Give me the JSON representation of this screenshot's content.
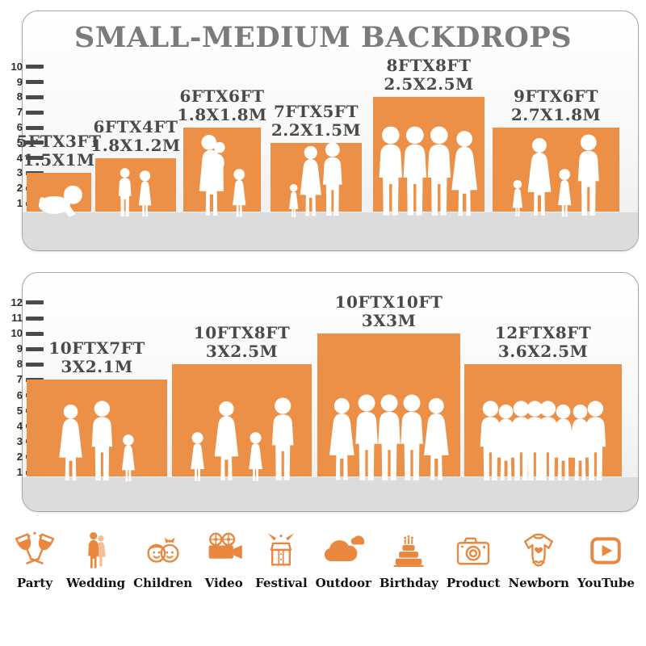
{
  "title": "SMALL-MEDIUM BACKDROPS",
  "colors": {
    "bar_orange": "#ED9047",
    "icon_orange": "#E9873E",
    "title_gray": "#7B7B7B",
    "label_gray": "#4A4A4A",
    "floor_gray": "#DCDCDC",
    "silhouette_white": "#FFFFFF"
  },
  "chart_data": [
    {
      "type": "bar",
      "panel": "small-medium-sizes-top",
      "ylim": [
        1,
        10
      ],
      "grid": false,
      "note": "bar height = backdrop height in ft, bar width = backdrop width in ft",
      "bars": [
        {
          "size_ft": "5FTX3FT",
          "size_m": "1.5X1M",
          "width_ft": 5,
          "height_ft": 3,
          "figures": [
            "baby"
          ]
        },
        {
          "size_ft": "6FTX4FT",
          "size_m": "1.8X1.2M",
          "width_ft": 6,
          "height_ft": 4,
          "figures": [
            "boy",
            "girl"
          ]
        },
        {
          "size_ft": "6FTX6FT",
          "size_m": "1.8X1.8M",
          "width_ft": 6,
          "height_ft": 6,
          "figures": [
            "woman-holding-baby",
            "girl"
          ]
        },
        {
          "size_ft": "7FTX5FT",
          "size_m": "2.2X1.5M",
          "width_ft": 7,
          "height_ft": 5,
          "figures": [
            "toddler",
            "woman",
            "man"
          ]
        },
        {
          "size_ft": "8FTX8FT",
          "size_m": "2.5X2.5M",
          "width_ft": 8,
          "height_ft": 8,
          "figures": [
            "man",
            "man",
            "man",
            "woman"
          ]
        },
        {
          "size_ft": "9FTX6FT",
          "size_m": "2.7X1.8M",
          "width_ft": 9,
          "height_ft": 6,
          "figures": [
            "toddler",
            "woman",
            "girl",
            "man"
          ]
        }
      ]
    },
    {
      "type": "bar",
      "panel": "small-medium-sizes-bottom",
      "ylim": [
        1,
        12
      ],
      "grid": false,
      "bars": [
        {
          "size_ft": "10FTX7FT",
          "size_m": "3X2.1M",
          "width_ft": 10,
          "height_ft": 7,
          "figures": [
            "woman",
            "man",
            "girl"
          ]
        },
        {
          "size_ft": "10FTX8FT",
          "size_m": "3X2.5M",
          "width_ft": 10,
          "height_ft": 8,
          "figures": [
            "girl",
            "woman",
            "girl",
            "man"
          ]
        },
        {
          "size_ft": "10FTX10FT",
          "size_m": "3X3M",
          "width_ft": 10,
          "height_ft": 10,
          "figures": [
            "woman",
            "man",
            "man",
            "man",
            "woman"
          ]
        },
        {
          "size_ft": "12FTX8FT",
          "size_m": "3.6X2.5M",
          "width_ft": 12,
          "height_ft": 8,
          "figures": [
            "man",
            "woman",
            "man",
            "man",
            "man",
            "woman",
            "woman",
            "man"
          ]
        }
      ]
    }
  ],
  "categories": [
    {
      "icon": "party-icon",
      "label": "Party"
    },
    {
      "icon": "wedding-icon",
      "label": "Wedding"
    },
    {
      "icon": "children-icon",
      "label": "Children"
    },
    {
      "icon": "video-icon",
      "label": "Video"
    },
    {
      "icon": "festival-icon",
      "label": "Festival"
    },
    {
      "icon": "outdoor-icon",
      "label": "Outdoor"
    },
    {
      "icon": "birthday-icon",
      "label": "Birthday"
    },
    {
      "icon": "product-icon",
      "label": "Product"
    },
    {
      "icon": "newborn-icon",
      "label": "Newborn"
    },
    {
      "icon": "youtube-icon",
      "label": "YouTube"
    }
  ]
}
